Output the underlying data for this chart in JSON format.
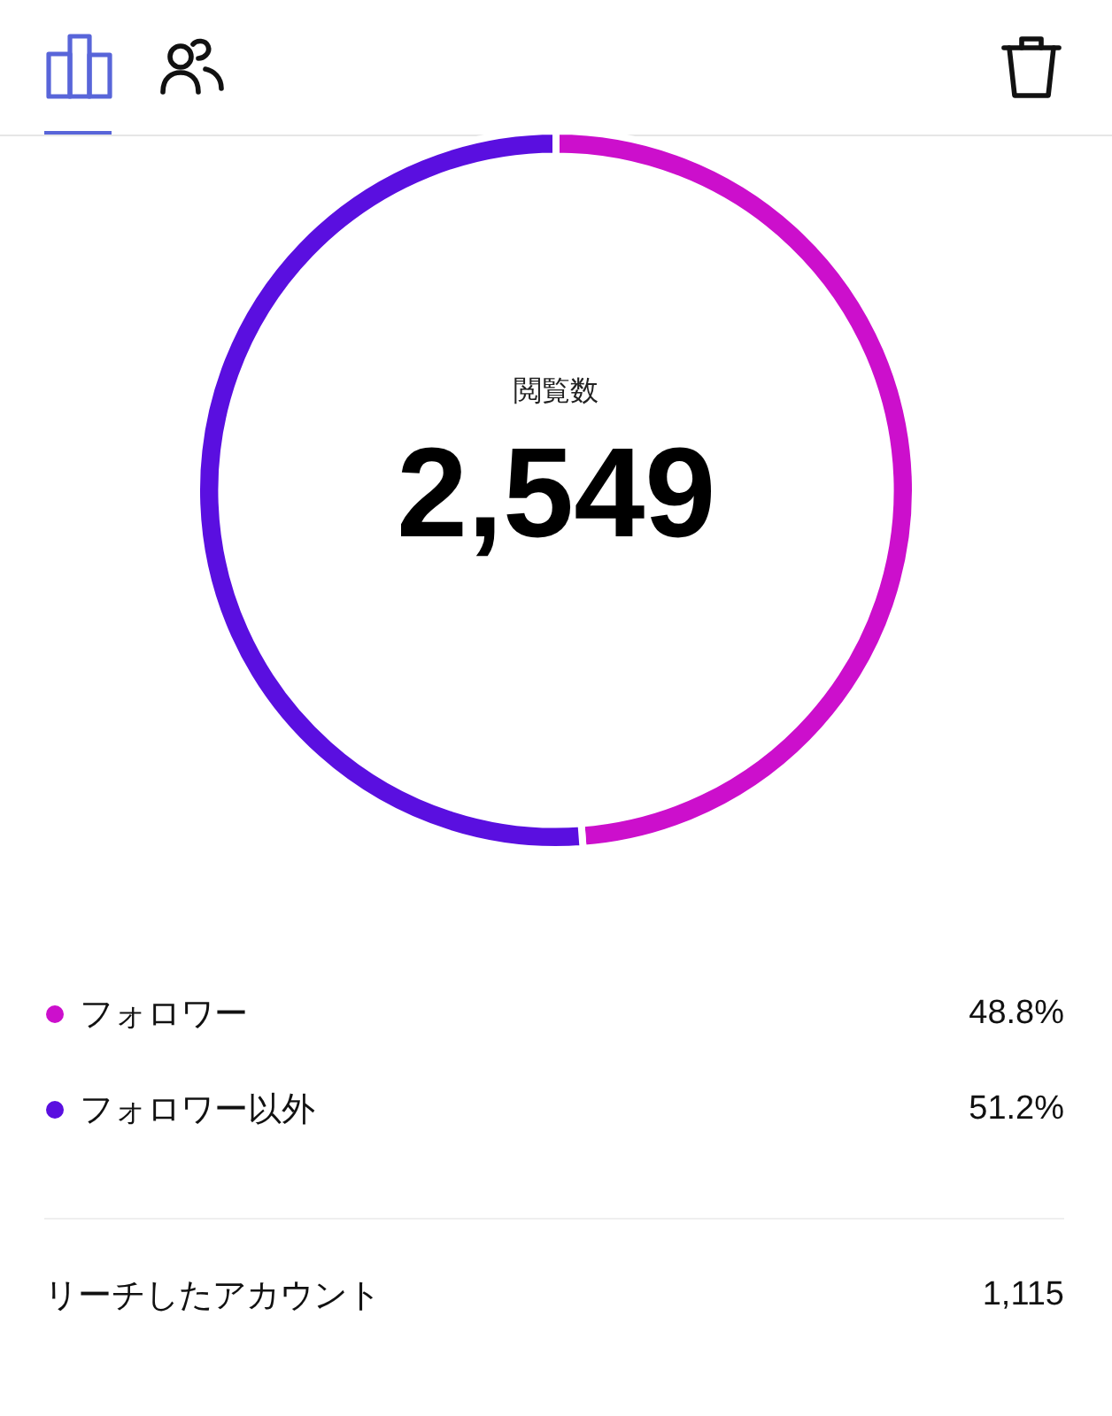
{
  "chart_data": {
    "type": "donut",
    "categories": [
      "フォロワー",
      "フォロワー以外"
    ],
    "values": [
      48.8,
      51.2
    ],
    "colors": [
      "#cc0fcc",
      "#5a0fe0"
    ],
    "value_labels": [
      "48.8%",
      "51.2%"
    ],
    "legend": "bottom",
    "annotations": [
      "閲覧数",
      "2,549",
      "リーチしたアカウント",
      "1,115"
    ]
  }
}
